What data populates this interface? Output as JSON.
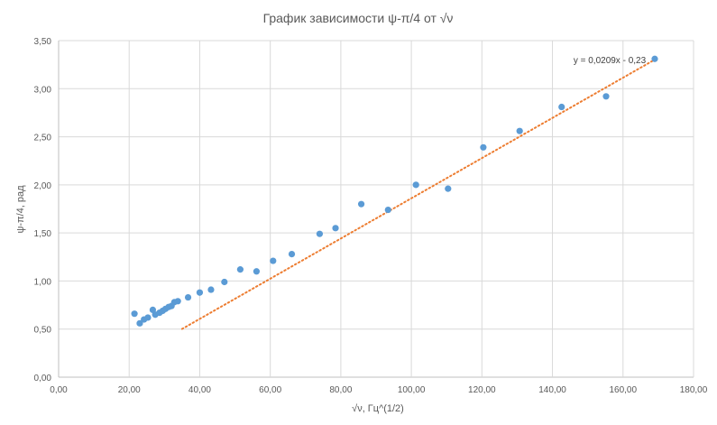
{
  "chart_data": {
    "type": "scatter",
    "title": "График зависимости ψ-π/4 от √ν",
    "xlabel": "√ν, Гц^(1/2)",
    "ylabel": "ψ-π/4, рад",
    "xlim": [
      0,
      180
    ],
    "ylim": [
      0,
      3.5
    ],
    "x_ticks": [
      "0,00",
      "20,00",
      "40,00",
      "60,00",
      "80,00",
      "100,00",
      "120,00",
      "140,00",
      "160,00",
      "180,00"
    ],
    "y_ticks": [
      "0,00",
      "0,50",
      "1,00",
      "1,50",
      "2,00",
      "2,50",
      "3,00",
      "3,50"
    ],
    "grid": true,
    "legend": "none",
    "colors": {
      "points": "#5b9bd5",
      "trendline": "#ed7d31",
      "grid": "#d9d9d9",
      "axis": "#bfbfbf"
    },
    "series": [
      {
        "points": [
          [
            21.5,
            0.66
          ],
          [
            23.0,
            0.56
          ],
          [
            24.2,
            0.6
          ],
          [
            25.3,
            0.62
          ],
          [
            26.7,
            0.7
          ],
          [
            27.4,
            0.65
          ],
          [
            28.6,
            0.67
          ],
          [
            29.5,
            0.69
          ],
          [
            30.3,
            0.71
          ],
          [
            31.2,
            0.73
          ],
          [
            32.0,
            0.74
          ],
          [
            32.8,
            0.78
          ],
          [
            33.8,
            0.79
          ],
          [
            36.7,
            0.83
          ],
          [
            40.0,
            0.88
          ],
          [
            43.2,
            0.91
          ],
          [
            47.0,
            0.99
          ],
          [
            51.5,
            1.12
          ],
          [
            56.1,
            1.1
          ],
          [
            60.8,
            1.21
          ],
          [
            66.1,
            1.28
          ],
          [
            74.0,
            1.49
          ],
          [
            78.5,
            1.55
          ],
          [
            85.8,
            1.8
          ],
          [
            93.4,
            1.74
          ],
          [
            101.3,
            2.0
          ],
          [
            110.4,
            1.96
          ],
          [
            120.4,
            2.39
          ],
          [
            130.7,
            2.56
          ],
          [
            142.6,
            2.81
          ],
          [
            155.2,
            2.92
          ],
          [
            169.0,
            3.31
          ]
        ]
      }
    ],
    "trendline": {
      "type": "linear",
      "slope": 0.0209,
      "intercept": -0.23,
      "x_range": [
        35,
        169
      ],
      "equation_label": "y = 0,0209x - 0,23"
    }
  }
}
